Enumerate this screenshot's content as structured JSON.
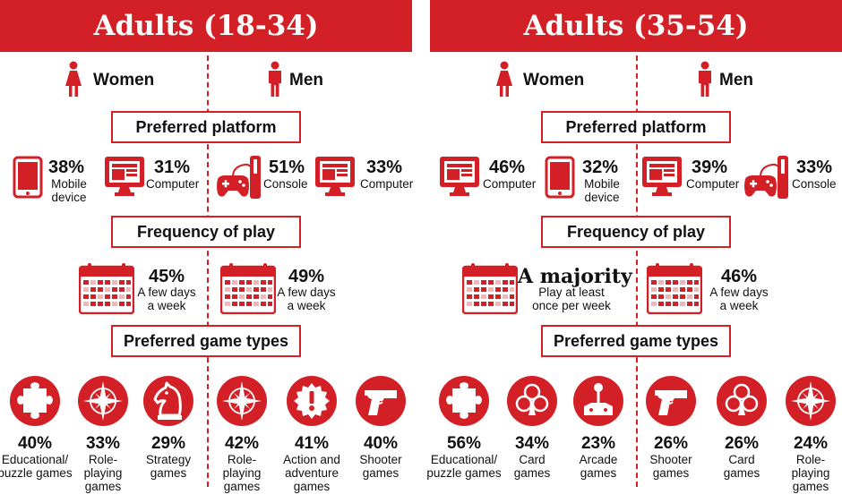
{
  "chart_data": [
    {
      "type": "infographic",
      "title": "Adults (18-34)",
      "genders": {
        "women": "Women",
        "men": "Men"
      },
      "sections": {
        "platform": "Preferred platform",
        "frequency": "Frequency of play",
        "game_types": "Preferred game types"
      },
      "women": {
        "platform": [
          {
            "value": "38%",
            "label": "Mobile device"
          },
          {
            "value": "31%",
            "label": "Computer"
          }
        ],
        "frequency": {
          "value": "45%",
          "label": "A few days a week"
        },
        "games": [
          {
            "value": "40%",
            "label": "Educational/ puzzle games",
            "icon": "puzzle-icon"
          },
          {
            "value": "33%",
            "label": "Role- playing games",
            "icon": "compass-star-icon"
          },
          {
            "value": "29%",
            "label": "Strategy games",
            "icon": "chess-knight-icon"
          }
        ]
      },
      "men": {
        "platform": [
          {
            "value": "51%",
            "label": "Console"
          },
          {
            "value": "33%",
            "label": "Computer"
          }
        ],
        "frequency": {
          "value": "49%",
          "label": "A few days a week"
        },
        "games": [
          {
            "value": "42%",
            "label": "Role- playing games",
            "icon": "compass-star-icon"
          },
          {
            "value": "41%",
            "label": "Action and adventure games",
            "icon": "exclamation-badge-icon"
          },
          {
            "value": "40%",
            "label": "Shooter games",
            "icon": "pistol-icon"
          }
        ]
      }
    },
    {
      "type": "infographic",
      "title": "Adults (35-54)",
      "genders": {
        "women": "Women",
        "men": "Men"
      },
      "sections": {
        "platform": "Preferred platform",
        "frequency": "Frequency of play",
        "game_types": "Preferred game types"
      },
      "women": {
        "platform": [
          {
            "value": "46%",
            "label": "Computer"
          },
          {
            "value": "32%",
            "label": "Mobile device"
          }
        ],
        "frequency": {
          "value": "A majority",
          "label": "Play at least once per week"
        },
        "games": [
          {
            "value": "56%",
            "label": "Educational/ puzzle games",
            "icon": "puzzle-icon"
          },
          {
            "value": "34%",
            "label": "Card games",
            "icon": "club-icon"
          },
          {
            "value": "23%",
            "label": "Arcade games",
            "icon": "joystick-icon"
          }
        ]
      },
      "men": {
        "platform": [
          {
            "value": "39%",
            "label": "Computer"
          },
          {
            "value": "33%",
            "label": "Console"
          }
        ],
        "frequency": {
          "value": "46%",
          "label": "A few days a week"
        },
        "games": [
          {
            "value": "26%",
            "label": "Shooter games",
            "icon": "pistol-icon"
          },
          {
            "value": "26%",
            "label": "Card games",
            "icon": "club-icon"
          },
          {
            "value": "24%",
            "label": "Role- playing games",
            "icon": "compass-star-icon"
          }
        ]
      }
    }
  ],
  "colors": {
    "accent": "#d32027",
    "text": "#111111",
    "background": "#ffffff"
  }
}
